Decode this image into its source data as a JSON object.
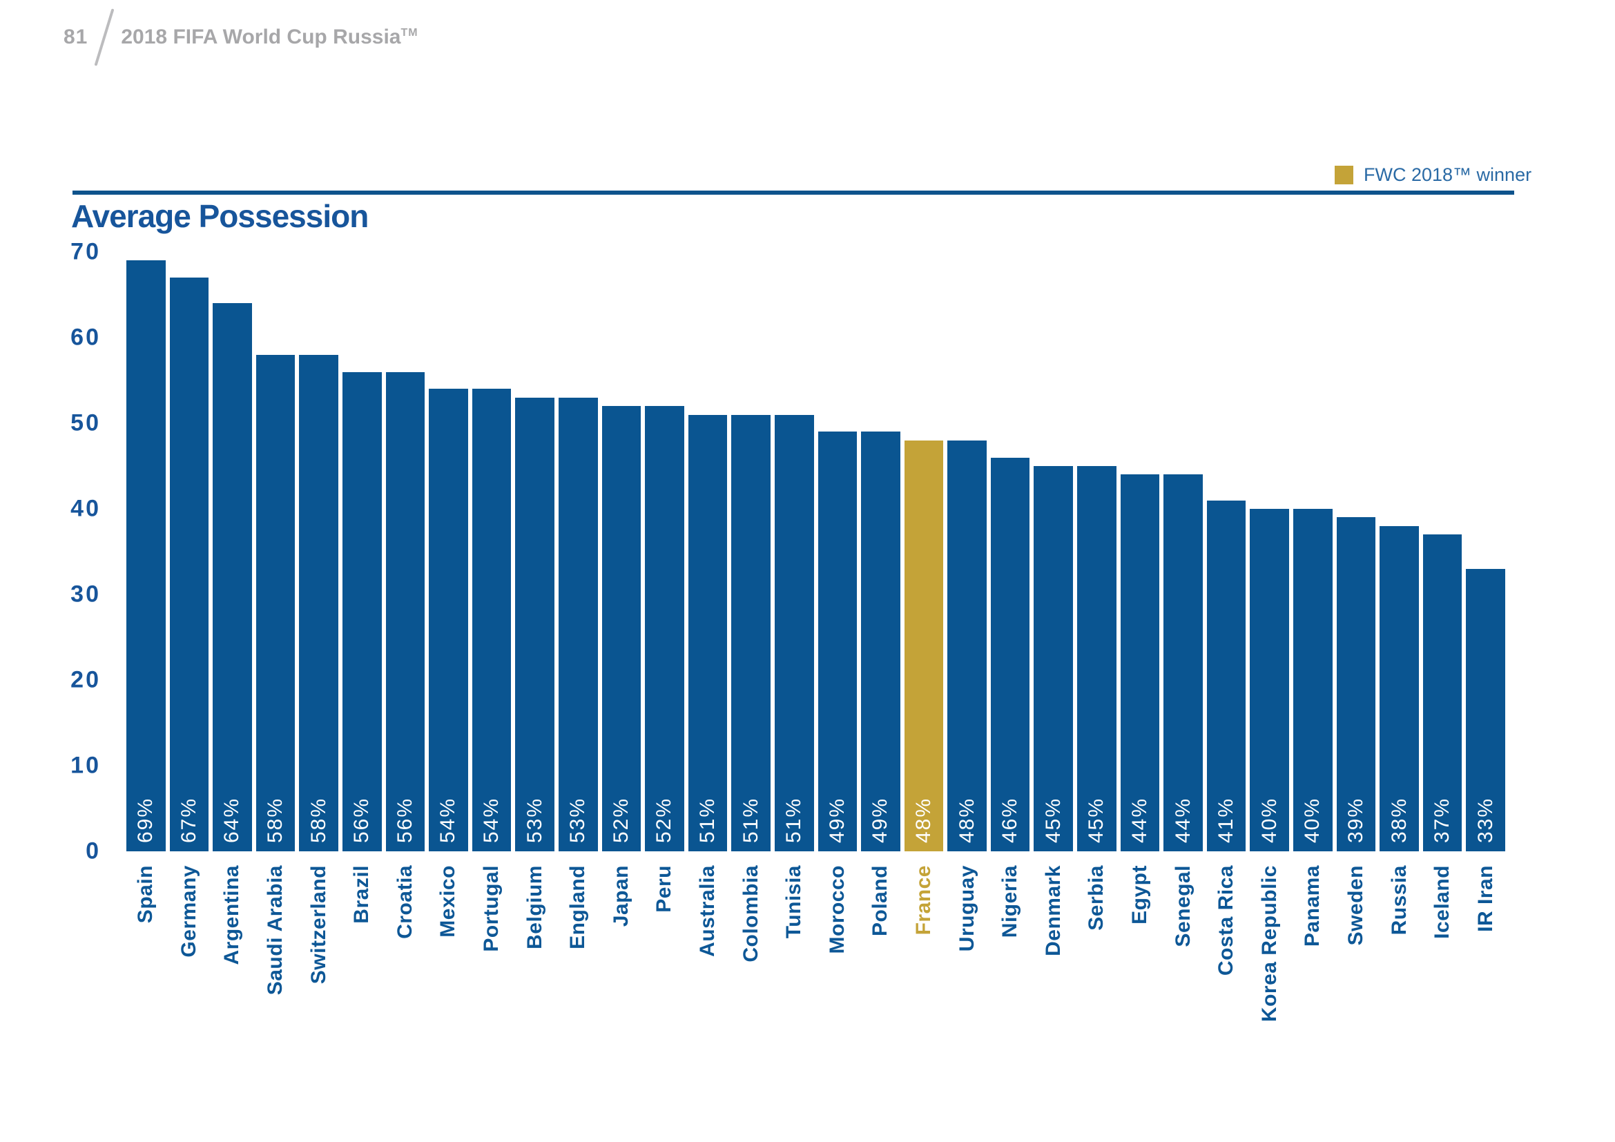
{
  "header": {
    "page_number": "81",
    "doc_title": "2018 FIFA World Cup Russia",
    "trademark": "TM"
  },
  "legend": {
    "label": "FWC 2018™ winner"
  },
  "colors": {
    "bar_blue": "#0a5591",
    "winner_gold": "#c4a338",
    "heading_blue": "#17559b",
    "country_label_blue": "#0d5796",
    "legend_text_blue": "#2a6aa5",
    "rule_blue": "#0e538c",
    "header_gray": "#a7a7a9",
    "value_label_white": "#ffffff"
  },
  "chart_data": {
    "type": "bar",
    "title": "Average Possession",
    "xlabel": "",
    "ylabel": "",
    "ylim": [
      0,
      70
    ],
    "yticks": [
      0,
      10,
      20,
      30,
      40,
      50,
      60,
      70
    ],
    "grid": false,
    "legend_position": "top-right",
    "value_suffix": "%",
    "highlight": {
      "category": "France"
    },
    "categories": [
      "Spain",
      "Germany",
      "Argentina",
      "Saudi Arabia",
      "Switzerland",
      "Brazil",
      "Croatia",
      "Mexico",
      "Portugal",
      "Belgium",
      "England",
      "Japan",
      "Peru",
      "Australia",
      "Colombia",
      "Tunisia",
      "Morocco",
      "Poland",
      "France",
      "Uruguay",
      "Nigeria",
      "Denmark",
      "Serbia",
      "Egypt",
      "Senegal",
      "Costa Rica",
      "Korea Republic",
      "Panama",
      "Sweden",
      "Russia",
      "Iceland",
      "IR Iran"
    ],
    "values": [
      69,
      67,
      64,
      58,
      58,
      56,
      56,
      54,
      54,
      53,
      53,
      52,
      52,
      51,
      51,
      51,
      49,
      49,
      48,
      48,
      46,
      45,
      45,
      44,
      44,
      41,
      40,
      40,
      39,
      38,
      37,
      33
    ]
  }
}
